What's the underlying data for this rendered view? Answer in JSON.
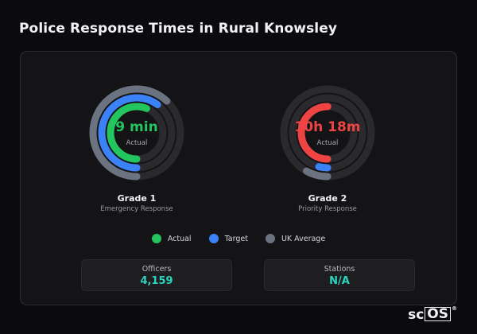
{
  "page": {
    "title": "Police Response Times in Rural Knowsley"
  },
  "colors": {
    "actual": "#22c55e",
    "target": "#3b82f6",
    "uk_average": "#6b7280",
    "grade2_actual": "#ef4444",
    "stat_value": "#2dd4bf"
  },
  "gauges": [
    {
      "value": "9 min",
      "sublabel": "Actual",
      "title": "Grade 1",
      "subtitle": "Emergency Response",
      "levels": {
        "uk_average": 0.62,
        "target": 0.6,
        "actual": 0.56
      }
    },
    {
      "value": "10h 18m",
      "sublabel": "Actual",
      "title": "Grade 2",
      "subtitle": "Priority Response",
      "levels": {
        "uk_average": 0.08,
        "target": 0.04,
        "actual": 0.5
      }
    }
  ],
  "legend": [
    {
      "label": "Actual",
      "color": "#22c55e"
    },
    {
      "label": "Target",
      "color": "#3b82f6"
    },
    {
      "label": "UK Average",
      "color": "#6b7280"
    }
  ],
  "stats": [
    {
      "label": "Officers",
      "value": "4,159"
    },
    {
      "label": "Stations",
      "value": "N/A"
    }
  ],
  "brand": {
    "prefix": "sc",
    "boxed": "OS",
    "mark": "®"
  }
}
